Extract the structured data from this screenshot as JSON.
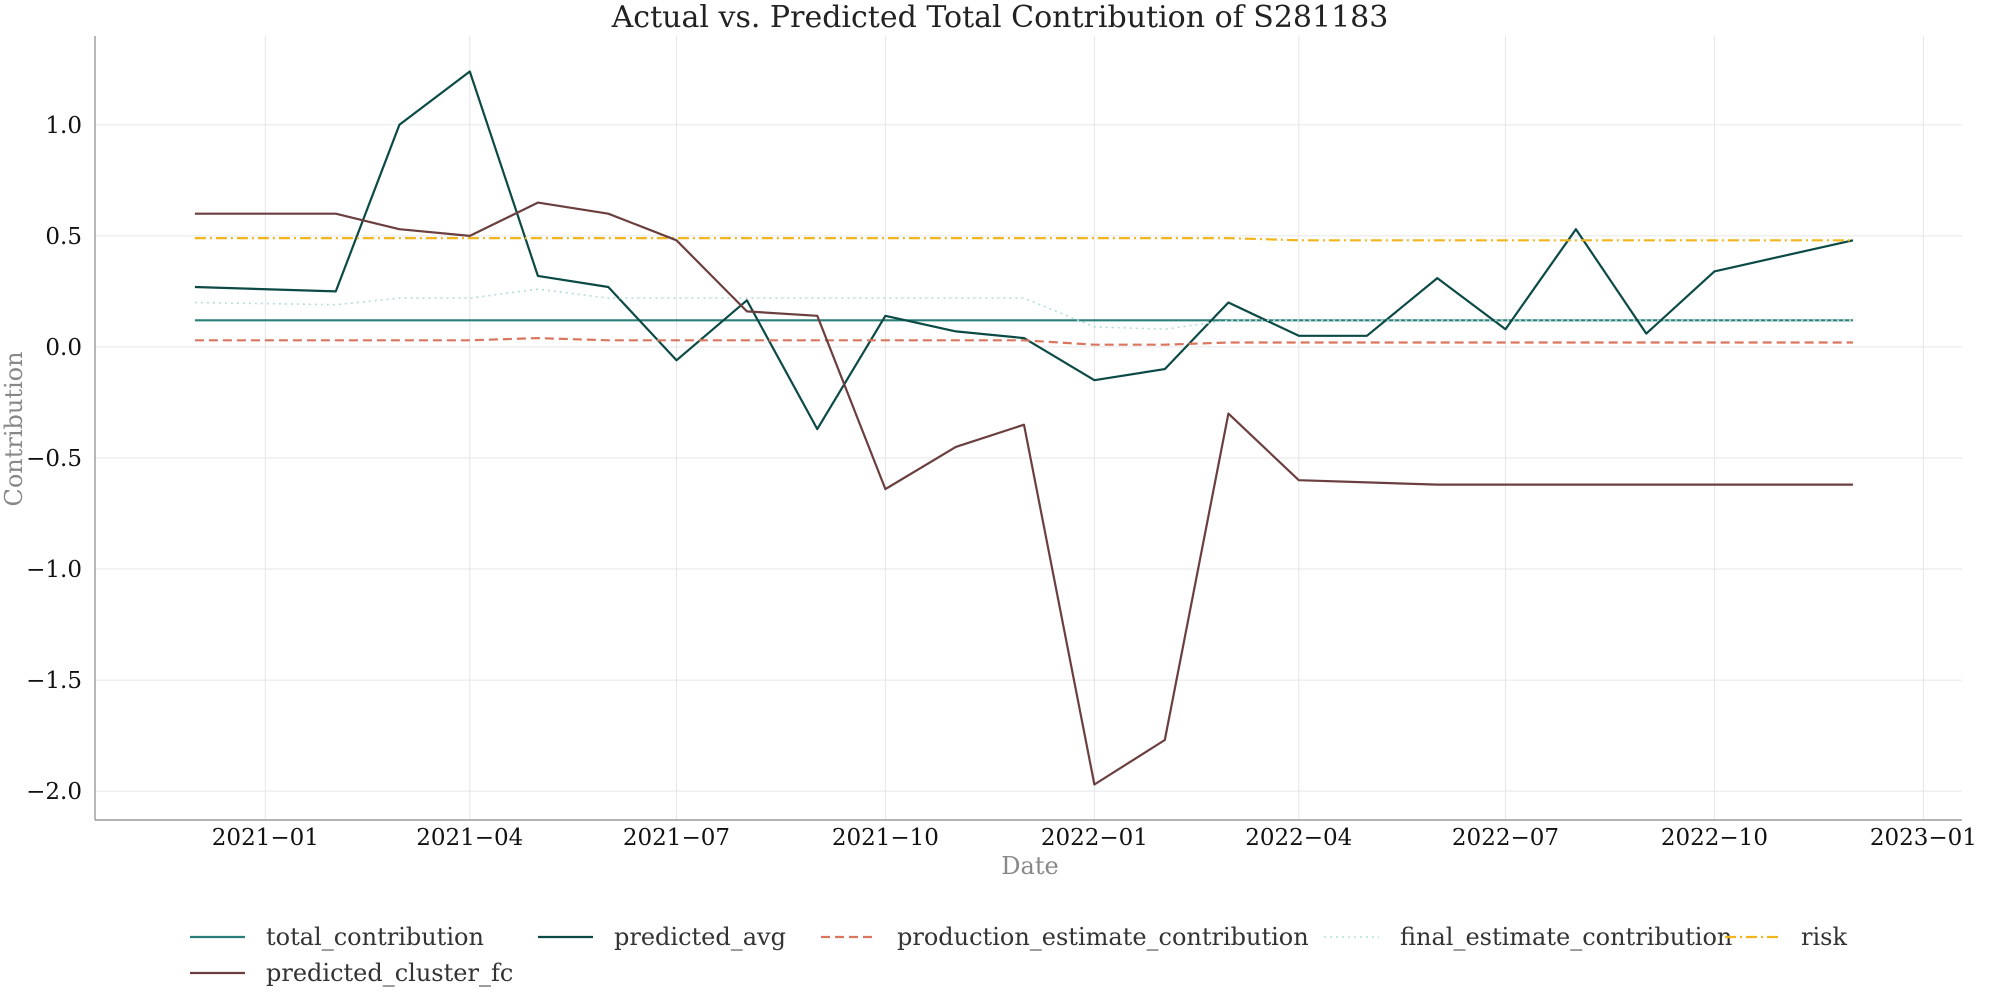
{
  "chart_data": {
    "type": "line",
    "title": "Actual vs. Predicted Total Contribution of S281183",
    "xlabel": "Date",
    "ylabel": "Contribution",
    "x": [
      "2020-12",
      "2021-01",
      "2021-02",
      "2021-03",
      "2021-04",
      "2021-05",
      "2021-06",
      "2021-07",
      "2021-08",
      "2021-09",
      "2021-10",
      "2021-11",
      "2021-12",
      "2022-01",
      "2022-02",
      "2022-03",
      "2022-04",
      "2022-05",
      "2022-06",
      "2022-07",
      "2022-08",
      "2022-09",
      "2022-10",
      "2022-11",
      "2022-12"
    ],
    "x_ticks": [
      "2021-01",
      "2021-04",
      "2021-07",
      "2021-10",
      "2022-01",
      "2022-04",
      "2022-07",
      "2022-10",
      "2023-01"
    ],
    "x_tick_labels": [
      "2021−01",
      "2021−04",
      "2021−07",
      "2021−10",
      "2022−01",
      "2022−04",
      "2022−07",
      "2022−10",
      "2023−01"
    ],
    "xlim": [
      "2020-10-18",
      "2023-01-18"
    ],
    "ylim": [
      -2.13,
      1.4
    ],
    "y_ticks": [
      -2.0,
      -1.5,
      -1.0,
      -0.5,
      0.0,
      0.5,
      1.0
    ],
    "y_tick_labels": [
      "−2.0",
      "−1.5",
      "−1.0",
      "−0.5",
      "0.0",
      "0.5",
      "1.0"
    ],
    "grid": true,
    "legend_placement": "bottom",
    "series": [
      {
        "name": "total_contribution",
        "color": "#2a7f7a",
        "style": "solid",
        "values": [
          0.12,
          0.12,
          0.12,
          0.12,
          0.12,
          0.12,
          0.12,
          0.12,
          0.12,
          0.12,
          0.12,
          0.12,
          0.12,
          0.12,
          0.12,
          0.12,
          0.12,
          0.12,
          0.12,
          0.12,
          0.12,
          0.12,
          0.12,
          0.12,
          0.12
        ]
      },
      {
        "name": "predicted_avg",
        "color": "#0b4a45",
        "style": "solid",
        "values": [
          0.27,
          null,
          0.25,
          1.0,
          1.24,
          0.32,
          0.27,
          -0.06,
          0.21,
          -0.37,
          0.14,
          0.07,
          0.04,
          -0.15,
          -0.1,
          0.2,
          0.05,
          0.05,
          0.31,
          0.08,
          0.53,
          0.06,
          0.34,
          null,
          0.48
        ]
      },
      {
        "name": "production_estimate_contribution",
        "color": "#d9765f",
        "style": "dashed",
        "values": [
          0.03,
          null,
          0.03,
          0.03,
          0.03,
          0.04,
          0.03,
          0.03,
          0.03,
          0.03,
          0.03,
          0.03,
          0.03,
          0.01,
          0.01,
          0.02,
          0.02,
          0.02,
          0.02,
          0.02,
          0.02,
          0.02,
          0.02,
          null,
          0.02
        ]
      },
      {
        "name": "final_estimate_contribution",
        "color": "#b3ddd8",
        "style": "dotted",
        "values": [
          0.2,
          null,
          0.19,
          0.22,
          0.22,
          0.26,
          0.22,
          0.22,
          0.22,
          0.22,
          0.22,
          0.22,
          0.22,
          0.09,
          0.08,
          0.12,
          0.12,
          0.12,
          0.12,
          0.12,
          0.12,
          0.12,
          0.12,
          null,
          0.12
        ]
      },
      {
        "name": "risk",
        "color": "#f2b51c",
        "style": "dashdot",
        "values": [
          0.49,
          null,
          0.49,
          0.49,
          0.49,
          0.49,
          0.49,
          0.49,
          0.49,
          0.49,
          0.49,
          0.49,
          0.49,
          0.49,
          0.49,
          0.49,
          0.48,
          0.48,
          0.48,
          0.48,
          0.48,
          0.48,
          0.48,
          null,
          0.48
        ]
      },
      {
        "name": "predicted_cluster_fc",
        "color": "#6b3f3f",
        "style": "solid",
        "values": [
          0.6,
          null,
          0.6,
          0.53,
          0.5,
          0.65,
          0.6,
          0.48,
          0.16,
          0.14,
          -0.64,
          -0.45,
          -0.35,
          -1.97,
          -1.77,
          -0.3,
          -0.6,
          -0.61,
          -0.62,
          -0.62,
          -0.62,
          -0.62,
          -0.62,
          null,
          -0.62
        ]
      }
    ]
  }
}
